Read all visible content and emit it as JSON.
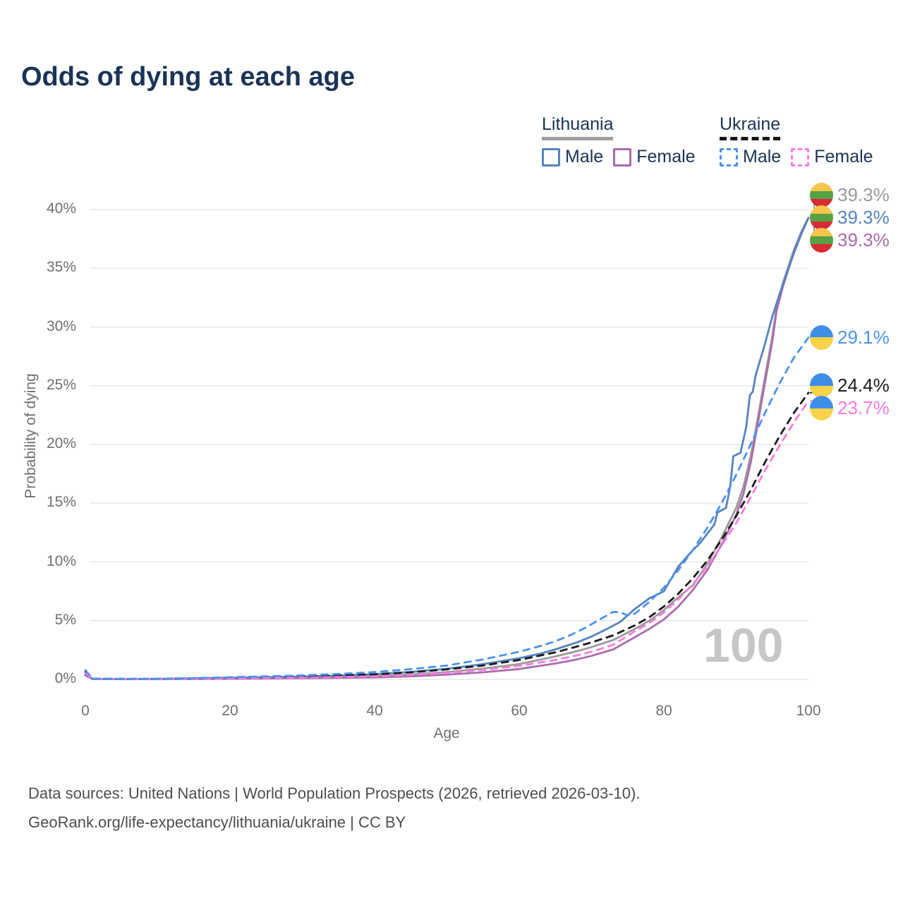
{
  "title": "Odds of dying at each age",
  "watermark": "100",
  "legend": {
    "groups": [
      {
        "title": "Lithuania",
        "items": [
          {
            "label": "Male",
            "series_id": "lithuania-male"
          },
          {
            "label": "Female",
            "series_id": "lithuania-female"
          }
        ]
      },
      {
        "title": "Ukraine",
        "items": [
          {
            "label": "Male",
            "series_id": "ukraine-male"
          },
          {
            "label": "Female",
            "series_id": "ukraine-female"
          }
        ]
      }
    ]
  },
  "footer": {
    "line1": "Data sources: United Nations | World Population Prospects (2026, retrieved 2026-03-10).",
    "line2": "GeoRank.org/life-expectancy/lithuania/ukraine | CC BY"
  },
  "flags": {
    "lithuania": {
      "stripes": [
        "#F6C54A",
        "#57A144",
        "#D92B34"
      ]
    },
    "ukraine": {
      "stripes": [
        "#3E8EE8",
        "#F8D348"
      ]
    }
  },
  "chart_data": {
    "type": "line",
    "title": "Odds of dying at each age",
    "xlabel": "Age",
    "ylabel": "Probability of dying",
    "xlim": [
      0,
      100
    ],
    "ylim_pct": [
      0,
      41
    ],
    "x_ticks": [
      0,
      20,
      40,
      60,
      80,
      100
    ],
    "y_ticks_pct": [
      0,
      5,
      10,
      15,
      20,
      25,
      30,
      35,
      40
    ],
    "grid": true,
    "legend_position": "top-right",
    "series": [
      {
        "id": "lithuania-total",
        "name": "Lithuania (all)",
        "country": "Lithuania",
        "sex": "All",
        "color": "#9B9B9B",
        "dashed": false,
        "flag": "lithuania",
        "end_label": "39.3%",
        "points": [
          [
            0,
            0.38
          ],
          [
            1,
            0.04
          ],
          [
            5,
            0.02
          ],
          [
            10,
            0.03
          ],
          [
            15,
            0.06
          ],
          [
            20,
            0.08
          ],
          [
            25,
            0.11
          ],
          [
            30,
            0.15
          ],
          [
            35,
            0.2
          ],
          [
            40,
            0.28
          ],
          [
            45,
            0.42
          ],
          [
            50,
            0.62
          ],
          [
            55,
            0.92
          ],
          [
            60,
            1.3
          ],
          [
            65,
            1.95
          ],
          [
            68,
            2.4
          ],
          [
            70,
            2.75
          ],
          [
            73,
            3.35
          ],
          [
            76,
            4.3
          ],
          [
            78,
            5.0
          ],
          [
            80,
            5.9
          ],
          [
            82,
            7.0
          ],
          [
            84,
            8.0
          ],
          [
            86,
            9.8
          ],
          [
            88,
            12.1
          ],
          [
            90,
            14.6
          ],
          [
            91,
            16.4
          ],
          [
            92,
            19.0
          ],
          [
            93,
            22.3
          ],
          [
            94,
            25.8
          ],
          [
            95,
            29.2
          ],
          [
            95.6,
            31.8
          ],
          [
            96.5,
            33.8
          ],
          [
            98,
            36.6
          ],
          [
            99,
            38.1
          ],
          [
            100,
            39.3
          ]
        ]
      },
      {
        "id": "lithuania-male",
        "name": "Lithuania male",
        "country": "Lithuania",
        "sex": "Male",
        "color": "#5584C0",
        "dashed": false,
        "flag": "lithuania",
        "end_label": "39.3%",
        "points": [
          [
            0,
            0.42
          ],
          [
            1,
            0.05
          ],
          [
            5,
            0.03
          ],
          [
            10,
            0.04
          ],
          [
            15,
            0.09
          ],
          [
            20,
            0.14
          ],
          [
            25,
            0.18
          ],
          [
            30,
            0.24
          ],
          [
            35,
            0.33
          ],
          [
            40,
            0.45
          ],
          [
            45,
            0.63
          ],
          [
            50,
            0.9
          ],
          [
            55,
            1.3
          ],
          [
            60,
            1.8
          ],
          [
            63,
            2.2
          ],
          [
            65,
            2.55
          ],
          [
            68,
            3.15
          ],
          [
            70,
            3.65
          ],
          [
            72,
            4.25
          ],
          [
            74,
            4.9
          ],
          [
            76,
            6.0
          ],
          [
            78,
            6.9
          ],
          [
            80,
            7.5
          ],
          [
            82,
            9.6
          ],
          [
            84,
            11.0
          ],
          [
            85,
            11.6
          ],
          [
            86,
            12.4
          ],
          [
            87,
            13.2
          ],
          [
            87.4,
            14.2
          ],
          [
            88.6,
            14.6
          ],
          [
            89.2,
            16.5
          ],
          [
            89.6,
            19.0
          ],
          [
            90.6,
            19.3
          ],
          [
            91.4,
            21.5
          ],
          [
            91.9,
            24.2
          ],
          [
            92.3,
            24.5
          ],
          [
            92.7,
            25.9
          ],
          [
            94,
            28.6
          ],
          [
            95,
            30.9
          ],
          [
            96,
            32.8
          ],
          [
            97,
            34.6
          ],
          [
            98,
            36.3
          ],
          [
            99,
            37.9
          ],
          [
            100,
            39.3
          ]
        ]
      },
      {
        "id": "lithuania-female",
        "name": "Lithuania female",
        "country": "Lithuania",
        "sex": "Female",
        "color": "#AB6CAE",
        "dashed": false,
        "flag": "lithuania",
        "end_label": "39.3%",
        "points": [
          [
            0,
            0.33
          ],
          [
            1,
            0.03
          ],
          [
            10,
            0.02
          ],
          [
            20,
            0.05
          ],
          [
            30,
            0.1
          ],
          [
            40,
            0.17
          ],
          [
            45,
            0.26
          ],
          [
            50,
            0.4
          ],
          [
            55,
            0.6
          ],
          [
            60,
            0.88
          ],
          [
            65,
            1.35
          ],
          [
            68,
            1.7
          ],
          [
            70,
            2.0
          ],
          [
            73,
            2.55
          ],
          [
            76,
            3.6
          ],
          [
            78,
            4.3
          ],
          [
            80,
            5.1
          ],
          [
            82,
            6.2
          ],
          [
            84,
            7.6
          ],
          [
            86,
            9.3
          ],
          [
            88,
            11.5
          ],
          [
            90,
            14.0
          ],
          [
            91,
            15.8
          ],
          [
            92,
            18.4
          ],
          [
            93,
            21.8
          ],
          [
            94,
            25.3
          ],
          [
            95,
            28.8
          ],
          [
            95.6,
            31.4
          ],
          [
            96.5,
            33.5
          ],
          [
            98,
            36.4
          ],
          [
            99,
            38.0
          ],
          [
            100,
            39.3
          ]
        ]
      },
      {
        "id": "ukraine-male",
        "name": "Ukraine male",
        "country": "Ukraine",
        "sex": "Male",
        "color": "#4B93F2",
        "dashed": true,
        "flag": "ukraine",
        "end_label": "29.1%",
        "points": [
          [
            0,
            0.78
          ],
          [
            1,
            0.06
          ],
          [
            5,
            0.04
          ],
          [
            10,
            0.05
          ],
          [
            15,
            0.11
          ],
          [
            20,
            0.18
          ],
          [
            25,
            0.26
          ],
          [
            30,
            0.34
          ],
          [
            35,
            0.46
          ],
          [
            40,
            0.62
          ],
          [
            45,
            0.87
          ],
          [
            50,
            1.18
          ],
          [
            55,
            1.7
          ],
          [
            60,
            2.35
          ],
          [
            63,
            2.85
          ],
          [
            65,
            3.25
          ],
          [
            67,
            3.75
          ],
          [
            69,
            4.35
          ],
          [
            71,
            5.05
          ],
          [
            72,
            5.4
          ],
          [
            73,
            5.75
          ],
          [
            74,
            5.7
          ],
          [
            75,
            5.45
          ],
          [
            76,
            5.6
          ],
          [
            78,
            6.6
          ],
          [
            80,
            7.8
          ],
          [
            82,
            9.3
          ],
          [
            84,
            11.0
          ],
          [
            86,
            12.9
          ],
          [
            88,
            15.0
          ],
          [
            90,
            17.4
          ],
          [
            92,
            20.0
          ],
          [
            94,
            22.7
          ],
          [
            96,
            25.2
          ],
          [
            98,
            27.4
          ],
          [
            100,
            29.1
          ]
        ]
      },
      {
        "id": "ukraine-total",
        "name": "Ukraine (all)",
        "country": "Ukraine",
        "sex": "All",
        "color": "#1C1C1C",
        "dashed": true,
        "flag": "ukraine",
        "end_label": "24.4%",
        "points": [
          [
            0,
            0.62
          ],
          [
            1,
            0.05
          ],
          [
            10,
            0.04
          ],
          [
            20,
            0.12
          ],
          [
            30,
            0.24
          ],
          [
            40,
            0.42
          ],
          [
            45,
            0.6
          ],
          [
            50,
            0.85
          ],
          [
            55,
            1.18
          ],
          [
            60,
            1.65
          ],
          [
            65,
            2.3
          ],
          [
            68,
            2.8
          ],
          [
            70,
            3.15
          ],
          [
            73,
            3.75
          ],
          [
            76,
            4.6
          ],
          [
            78,
            5.3
          ],
          [
            80,
            6.2
          ],
          [
            82,
            7.3
          ],
          [
            84,
            8.6
          ],
          [
            86,
            10.1
          ],
          [
            88,
            11.9
          ],
          [
            90,
            13.9
          ],
          [
            92,
            16.1
          ],
          [
            94,
            18.5
          ],
          [
            96,
            20.7
          ],
          [
            98,
            22.7
          ],
          [
            100,
            24.4
          ]
        ]
      },
      {
        "id": "ukraine-female",
        "name": "Ukraine female",
        "country": "Ukraine",
        "sex": "Female",
        "color": "#FB7BE0",
        "dashed": true,
        "flag": "ukraine",
        "end_label": "23.7%",
        "points": [
          [
            0,
            0.52
          ],
          [
            1,
            0.04
          ],
          [
            10,
            0.03
          ],
          [
            20,
            0.08
          ],
          [
            30,
            0.15
          ],
          [
            40,
            0.26
          ],
          [
            45,
            0.38
          ],
          [
            50,
            0.55
          ],
          [
            55,
            0.8
          ],
          [
            60,
            1.15
          ],
          [
            65,
            1.65
          ],
          [
            68,
            2.05
          ],
          [
            70,
            2.35
          ],
          [
            73,
            2.95
          ],
          [
            76,
            4.1
          ],
          [
            78,
            4.8
          ],
          [
            80,
            5.7
          ],
          [
            82,
            6.8
          ],
          [
            84,
            8.1
          ],
          [
            86,
            9.6
          ],
          [
            88,
            11.4
          ],
          [
            90,
            13.3
          ],
          [
            92,
            15.5
          ],
          [
            94,
            17.8
          ],
          [
            96,
            19.9
          ],
          [
            98,
            21.9
          ],
          [
            100,
            23.7
          ]
        ]
      }
    ]
  }
}
